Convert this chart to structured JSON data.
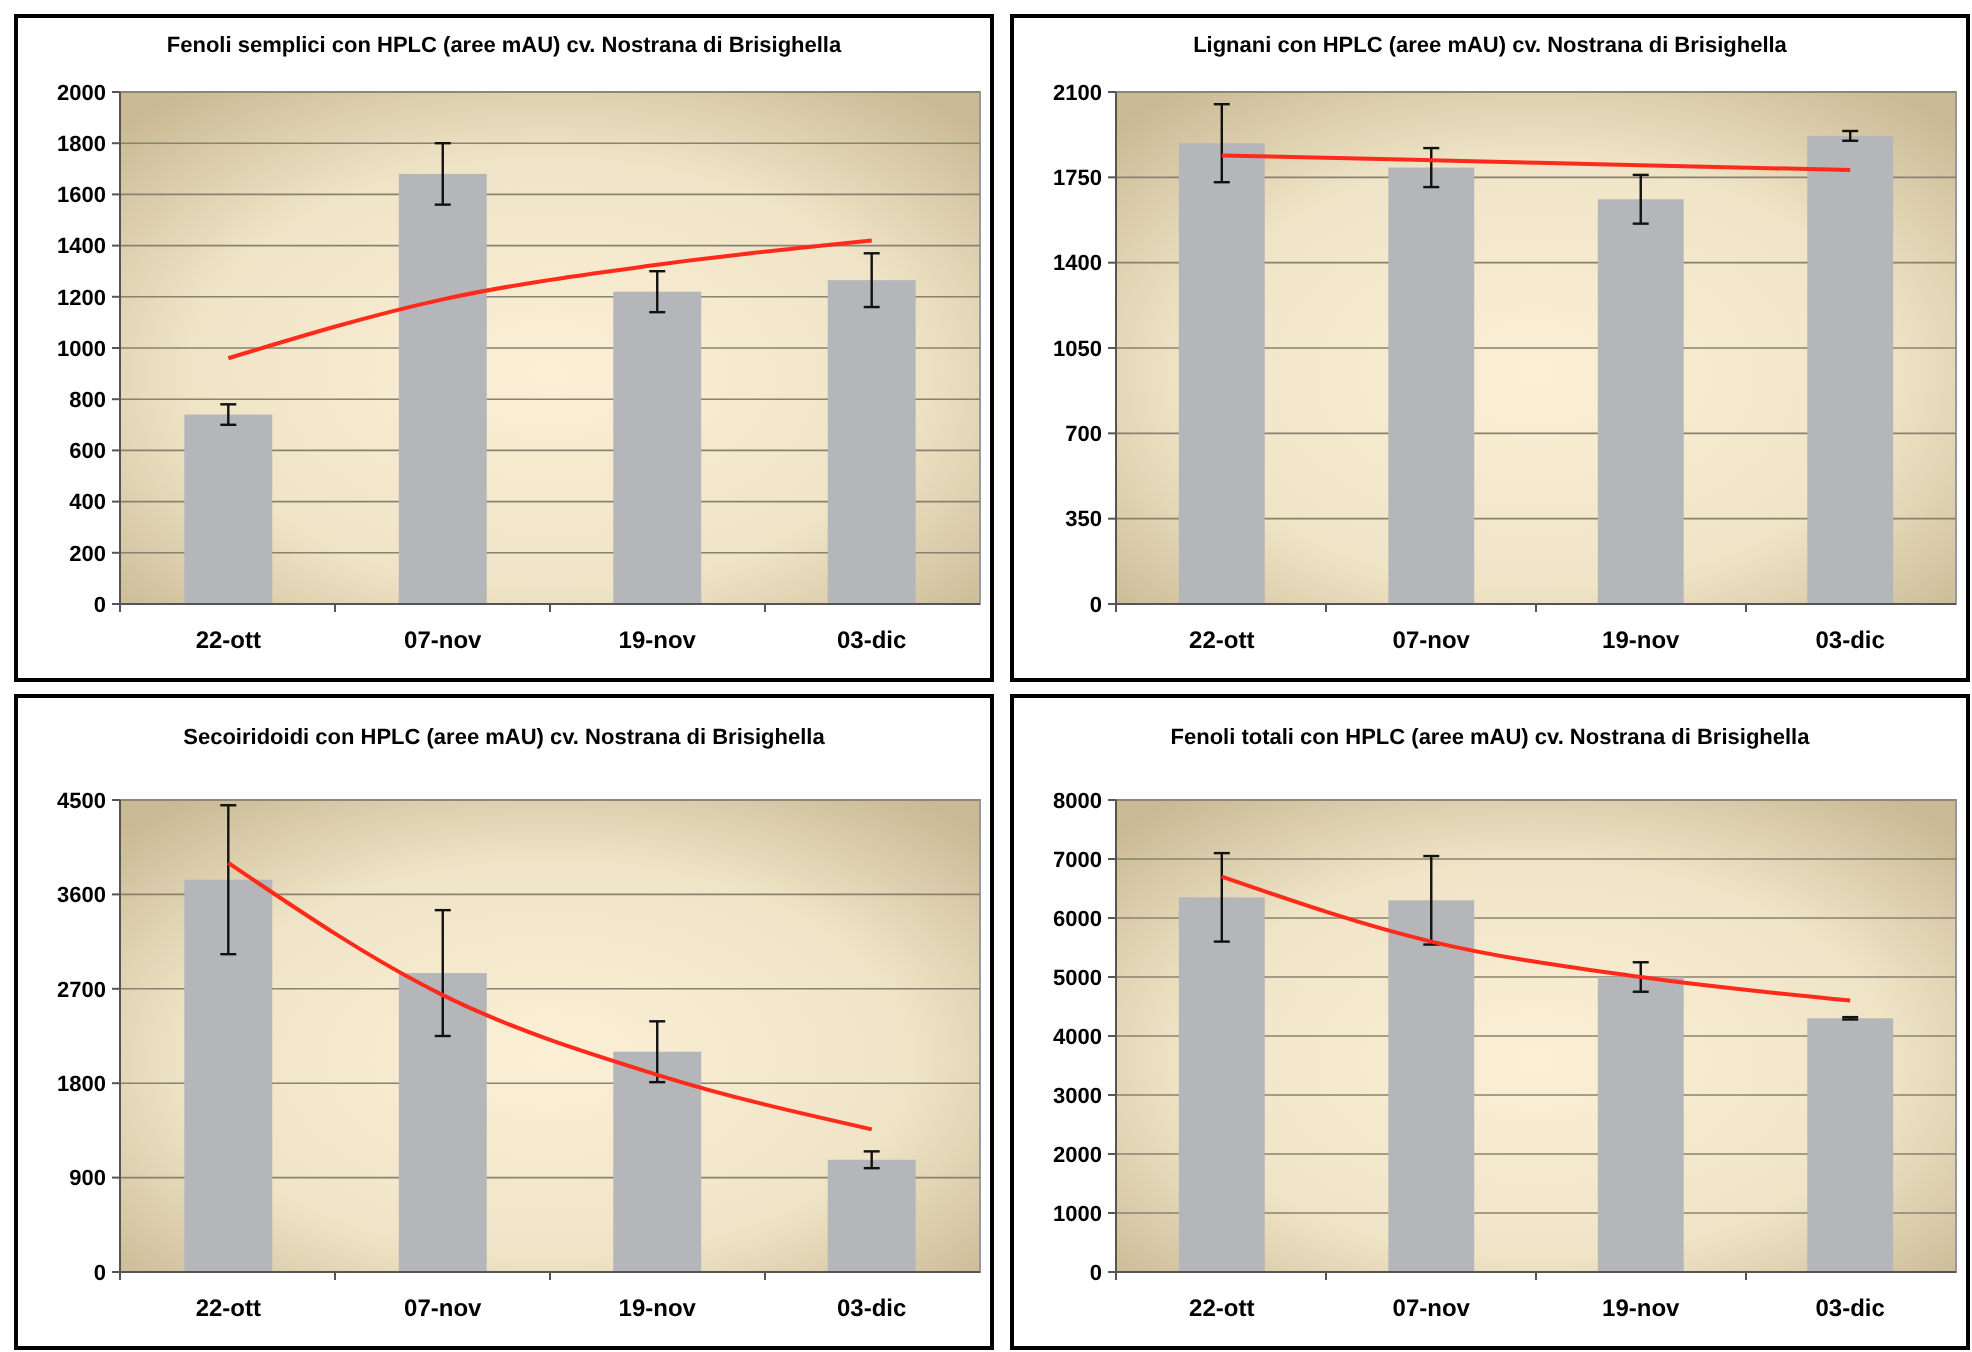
{
  "chart_data": [
    {
      "type": "bar",
      "title": "Fenoli semplici con HPLC (aree mAU) cv. Nostrana di Brisighella",
      "categories": [
        "22-ott",
        "07-nov",
        "19-nov",
        "03-dic"
      ],
      "ylim": [
        0,
        2000
      ],
      "yticks": [
        0,
        200,
        400,
        600,
        800,
        1000,
        1200,
        1400,
        1600,
        1800,
        2000
      ],
      "grid": "y",
      "series": [
        {
          "type": "bar",
          "color": "#b4b6ba",
          "values": [
            740,
            1680,
            1220,
            1265
          ],
          "errors": [
            40,
            120,
            80,
            105
          ]
        },
        {
          "type": "line",
          "color": "#ff2a1a",
          "values": [
            960,
            1190,
            1325,
            1420
          ]
        }
      ]
    },
    {
      "type": "bar",
      "title": "Lignani con HPLC (aree mAU) cv. Nostrana di Brisighella",
      "categories": [
        "22-ott",
        "07-nov",
        "19-nov",
        "03-dic"
      ],
      "ylim": [
        0,
        2100
      ],
      "yticks": [
        0,
        350,
        700,
        1050,
        1400,
        1750,
        2100
      ],
      "grid": "y",
      "series": [
        {
          "type": "bar",
          "color": "#b4b6ba",
          "values": [
            1890,
            1790,
            1660,
            1920
          ],
          "errors": [
            160,
            80,
            100,
            20
          ]
        },
        {
          "type": "line",
          "color": "#ff2a1a",
          "values": [
            1840,
            1820,
            1800,
            1780
          ]
        }
      ]
    },
    {
      "type": "bar",
      "title": "Secoiridoidi con HPLC (aree mAU) cv. Nostrana di Brisighella",
      "categories": [
        "22-ott",
        "07-nov",
        "19-nov",
        "03-dic"
      ],
      "ylim": [
        0,
        4500
      ],
      "yticks": [
        0,
        900,
        1800,
        2700,
        3600,
        4500
      ],
      "grid": "y",
      "series": [
        {
          "type": "bar",
          "color": "#b4b6ba",
          "values": [
            3740,
            2850,
            2100,
            1070
          ],
          "errors": [
            710,
            600,
            290,
            80
          ]
        },
        {
          "type": "line",
          "color": "#ff2a1a",
          "values": [
            3900,
            2640,
            1880,
            1360
          ]
        }
      ]
    },
    {
      "type": "bar",
      "title": "Fenoli totali con HPLC (aree mAU) cv. Nostrana di Brisighella",
      "categories": [
        "22-ott",
        "07-nov",
        "19-nov",
        "03-dic"
      ],
      "ylim": [
        0,
        8000
      ],
      "yticks": [
        0,
        1000,
        2000,
        3000,
        4000,
        5000,
        6000,
        7000,
        8000
      ],
      "grid": "y",
      "series": [
        {
          "type": "bar",
          "color": "#b4b6ba",
          "values": [
            6350,
            6300,
            5000,
            4300
          ],
          "errors": [
            750,
            750,
            250,
            20
          ]
        },
        {
          "type": "line",
          "color": "#ff2a1a",
          "values": [
            6700,
            5600,
            5000,
            4600
          ]
        }
      ]
    }
  ]
}
